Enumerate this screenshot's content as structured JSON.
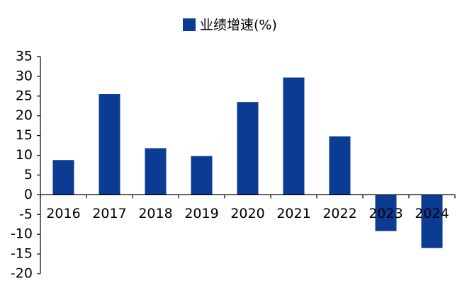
{
  "chart_data": {
    "type": "bar",
    "series": [
      {
        "name": "业绩增速(%)",
        "color": "#0b3b93",
        "values": [
          8.8,
          25.5,
          11.8,
          9.8,
          23.5,
          29.7,
          14.8,
          -9.2,
          -13.5
        ]
      }
    ],
    "categories": [
      "2016",
      "2017",
      "2018",
      "2019",
      "2020",
      "2021",
      "2022",
      "2023",
      "2024"
    ],
    "ylim": [
      -20,
      35
    ],
    "yticks": [
      -20,
      -15,
      -10,
      -5,
      0,
      5,
      10,
      15,
      20,
      25,
      30,
      35
    ],
    "grid": false,
    "legend": "top"
  }
}
